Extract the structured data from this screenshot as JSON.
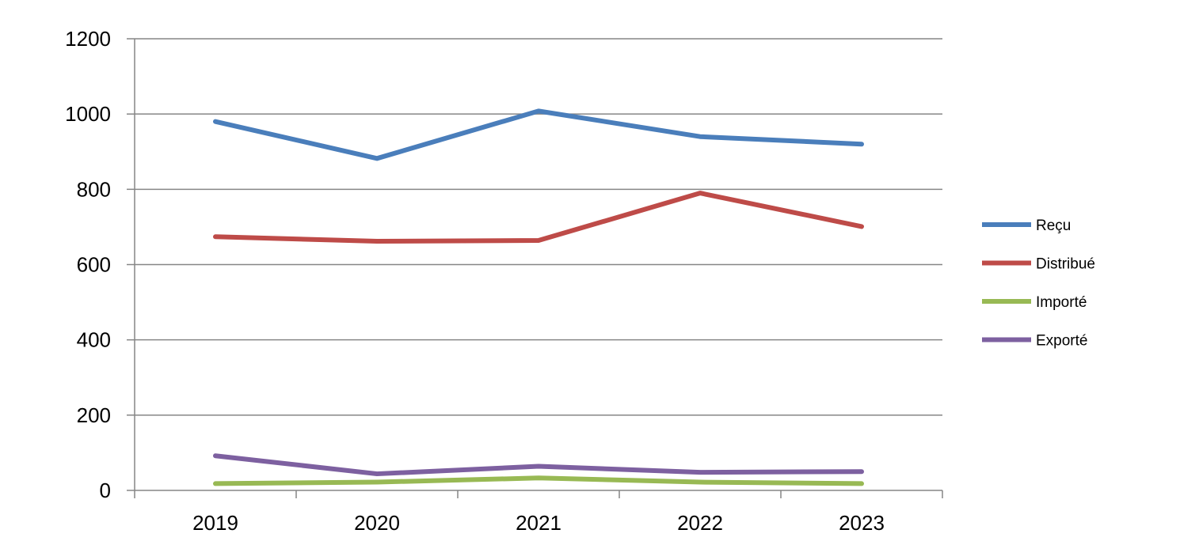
{
  "chart_data": {
    "type": "line",
    "title": "",
    "xlabel": "",
    "ylabel": "",
    "categories": [
      "2019",
      "2020",
      "2021",
      "2022",
      "2023"
    ],
    "ylim": [
      0,
      1200
    ],
    "yticks": [
      0,
      200,
      400,
      600,
      800,
      1000,
      1200
    ],
    "grid": true,
    "legend_position": "right",
    "series": [
      {
        "name": "Reçu",
        "color": "#4A7EBB",
        "values": [
          980,
          882,
          1008,
          940,
          920
        ]
      },
      {
        "name": "Distribué",
        "color": "#BE4B48",
        "values": [
          674,
          662,
          664,
          790,
          701
        ]
      },
      {
        "name": "Importé",
        "color": "#98B954",
        "values": [
          18,
          22,
          33,
          22,
          18
        ]
      },
      {
        "name": "Exporté",
        "color": "#7D60A0",
        "values": [
          92,
          44,
          64,
          48,
          50
        ]
      }
    ]
  }
}
